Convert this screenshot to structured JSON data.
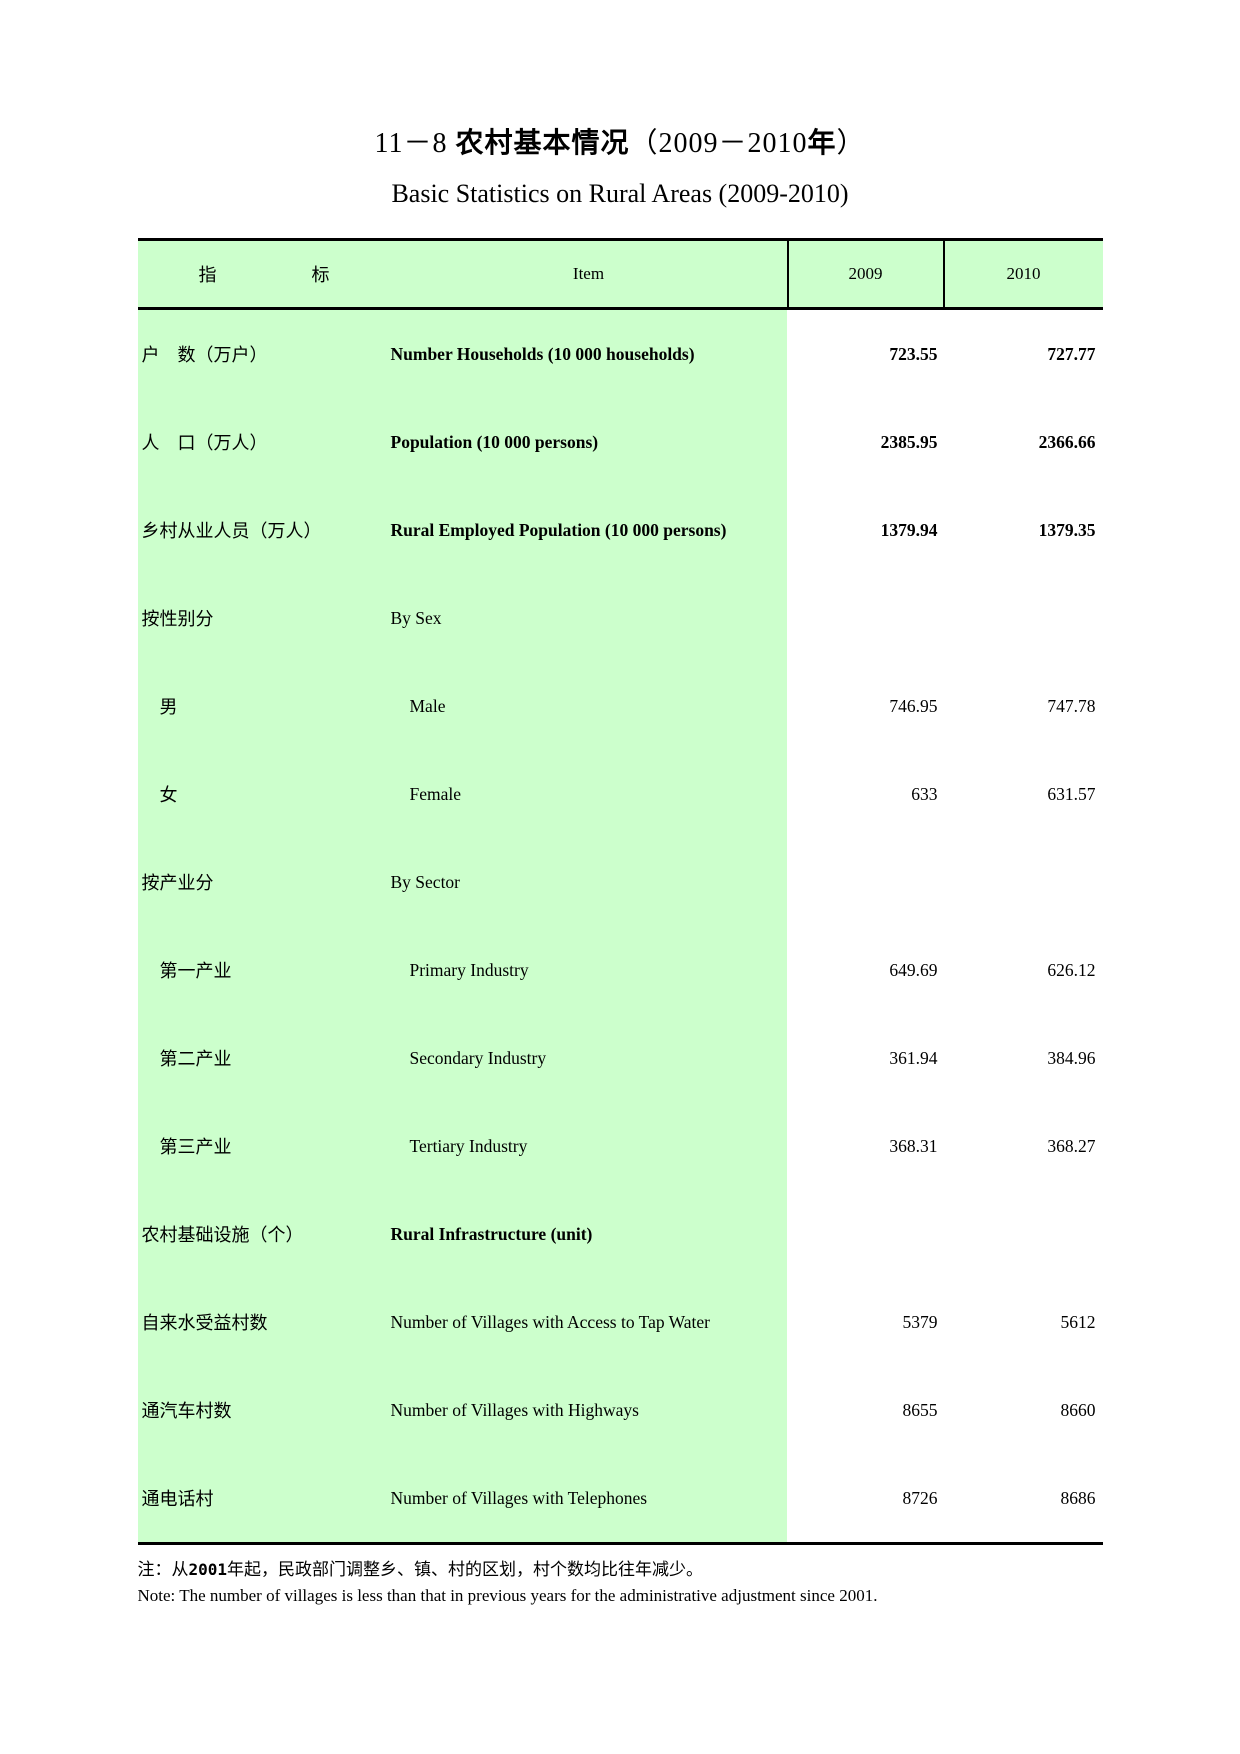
{
  "title": {
    "cn_part1": "11－8 ",
    "cn_part2_bold": "农村基本情况",
    "cn_part3": "（2009－2010",
    "cn_part4_bold": "年",
    "cn_part5": "）",
    "en": "Basic Statistics on Rural Areas (2009-2010)"
  },
  "header": {
    "item_cn_1": "指",
    "item_cn_2": "标",
    "item_en": "Item",
    "col_2009": "2009",
    "col_2010": "2010"
  },
  "rows": [
    {
      "cn": "户　数（万户）",
      "en": "Number Households (10 000 households)",
      "v2009": "723.55",
      "v2010": "727.77",
      "bold": true,
      "indent": false
    },
    {
      "cn": "人　口（万人）",
      "en": "Population (10 000 persons)",
      "v2009": "2385.95",
      "v2010": "2366.66",
      "bold": true,
      "indent": false
    },
    {
      "cn": "乡村从业人员（万人）",
      "en": "Rural Employed Population (10 000 persons)",
      "v2009": "1379.94",
      "v2010": "1379.35",
      "bold": true,
      "indent": false
    },
    {
      "cn": "按性别分",
      "en": "By Sex",
      "v2009": "",
      "v2010": "",
      "bold": false,
      "indent": false
    },
    {
      "cn": "男",
      "en": "Male",
      "v2009": "746.95",
      "v2010": "747.78",
      "bold": false,
      "indent": true
    },
    {
      "cn": "女",
      "en": "Female",
      "v2009": "633",
      "v2010": "631.57",
      "bold": false,
      "indent": true
    },
    {
      "cn": "按产业分",
      "en": "By Sector",
      "v2009": "",
      "v2010": "",
      "bold": false,
      "indent": false
    },
    {
      "cn": "第一产业",
      "en": "Primary Industry",
      "v2009": "649.69",
      "v2010": "626.12",
      "bold": false,
      "indent": true
    },
    {
      "cn": "第二产业",
      "en": "Secondary Industry",
      "v2009": "361.94",
      "v2010": "384.96",
      "bold": false,
      "indent": true
    },
    {
      "cn": "第三产业",
      "en": "Tertiary Industry",
      "v2009": "368.31",
      "v2010": "368.27",
      "bold": false,
      "indent": true
    },
    {
      "cn": "农村基础设施（个）",
      "en": "Rural Infrastructure (unit)",
      "v2009": "",
      "v2010": "",
      "bold": true,
      "indent": false
    },
    {
      "cn": "自来水受益村数",
      "en": "Number of Villages with Access to Tap Water",
      "v2009": "5379",
      "v2010": "5612",
      "bold": false,
      "indent": false
    },
    {
      "cn": "通汽车村数",
      "en": "Number of Villages with Highways",
      "v2009": "8655",
      "v2010": "8660",
      "bold": false,
      "indent": false
    },
    {
      "cn": "通电话村",
      "en": "Number of Villages with Telephones",
      "v2009": "8726",
      "v2010": "8686",
      "bold": false,
      "indent": false
    }
  ],
  "notes": {
    "cn_part1": "注：从",
    "cn_num": "2001",
    "cn_part2": "年起，民政部门调整乡、镇、村的区划，村个数均比往年减少。",
    "en": "Note: The number of villages is less than that in previous years for the administrative adjustment since 2001."
  },
  "colors": {
    "cell_green": "#ccffcc",
    "border": "#000000"
  }
}
